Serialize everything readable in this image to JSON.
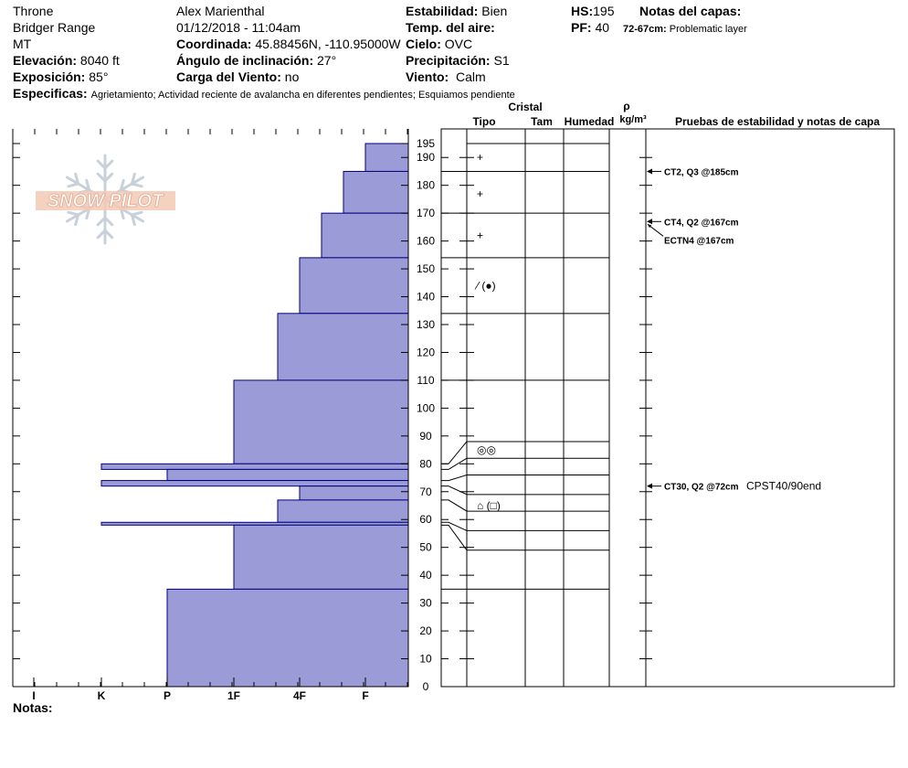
{
  "header": {
    "location": "Throne",
    "range": "Bridger Range",
    "state": "MT",
    "elevation": {
      "label": "Elevación:",
      "value": "8040 ft"
    },
    "aspect": {
      "label": "Exposición:",
      "value": "85°"
    },
    "observer": "Alex Marienthal",
    "datetime": "01/12/2018 - 11:04am",
    "coordinates": {
      "label": "Coordinada:",
      "value": "45.88456N, -110.95000W"
    },
    "slope": {
      "label": "Ángulo de inclinación:",
      "value": "27°"
    },
    "wind_load": {
      "label": "Carga del Viento:",
      "value": "no"
    },
    "stability": {
      "label": "Estabilidad:",
      "value": "Bien"
    },
    "air_temp": {
      "label": "Temp. del aire:",
      "value": ""
    },
    "sky": {
      "label": "Cielo:",
      "value": "OVC"
    },
    "precip": {
      "label": "Precipitación:",
      "value": "S1"
    },
    "wind": {
      "label": "Viento:",
      "value": "Calm"
    },
    "hs": {
      "label": "HS:",
      "value": "195"
    },
    "pf": {
      "label": "PF:",
      "value": "40"
    },
    "layer_notes": {
      "title": "Notas del capas:",
      "items": [
        {
          "range": "72-67cm:",
          "text": "Problematic layer"
        }
      ]
    },
    "specifics": {
      "label": "Especificas:",
      "value": "Agrietamiento;  Actividad reciente de avalancha en diferentes pendientes;  Esquiamos pendiente"
    }
  },
  "logo": {
    "text": "SNOW PILOT"
  },
  "notes_label": "Notas:",
  "columns": {
    "crystal": "Cristal",
    "type": "Tipo",
    "size": "Tam",
    "moisture": "Humedad",
    "density_symbol": "ρ",
    "density_unit": "kg/m³",
    "tests": "Pruebas de estabilidad y notas de capa"
  },
  "colors": {
    "profile_fill": "#9b9bd8",
    "profile_line": "#00007a"
  },
  "chart_data": {
    "type": "bar",
    "orientation": "horizontal",
    "title": "",
    "ylabel": "",
    "xlabel": "",
    "y_axis_unit": "cm",
    "ylim": [
      0,
      195
    ],
    "yticks": [
      0,
      10,
      20,
      30,
      40,
      50,
      60,
      70,
      80,
      90,
      100,
      110,
      120,
      130,
      140,
      150,
      160,
      170,
      180,
      190,
      195
    ],
    "hardness_scale": [
      "I",
      "K",
      "P",
      "1F",
      "4F",
      "F"
    ],
    "hardness_scale_order": [
      "F",
      "4F",
      "1F",
      "P",
      "K",
      "I"
    ],
    "layers": [
      {
        "top": 195,
        "bottom": 185,
        "hardness": "F"
      },
      {
        "top": 185,
        "bottom": 170,
        "hardness": "F+"
      },
      {
        "top": 170,
        "bottom": 154,
        "hardness": "4F-"
      },
      {
        "top": 154,
        "bottom": 134,
        "hardness": "4F"
      },
      {
        "top": 134,
        "bottom": 110,
        "hardness": "4F+"
      },
      {
        "top": 110,
        "bottom": 80,
        "hardness": "1F"
      },
      {
        "top": 80,
        "bottom": 78,
        "hardness": "K"
      },
      {
        "top": 78,
        "bottom": 74,
        "hardness": "P"
      },
      {
        "top": 74,
        "bottom": 72,
        "hardness": "K"
      },
      {
        "top": 72,
        "bottom": 67,
        "hardness": "4F"
      },
      {
        "top": 67,
        "bottom": 59,
        "hardness": "4F+"
      },
      {
        "top": 59,
        "bottom": 58,
        "hardness": "K"
      },
      {
        "top": 58,
        "bottom": 35,
        "hardness": "1F"
      },
      {
        "top": 35,
        "bottom": 0,
        "hardness": "P"
      }
    ],
    "grain_markers": [
      {
        "height": 190,
        "symbol": "+"
      },
      {
        "height": 177,
        "symbol": "+"
      },
      {
        "height": 162,
        "symbol": "+"
      },
      {
        "height": 144,
        "symbol": "⁄ (●)"
      },
      {
        "height": 85,
        "symbol": "◎◎"
      },
      {
        "height": 65,
        "symbol": "⌂ (□)"
      }
    ],
    "layer_boundaries": [
      195,
      185,
      170,
      154,
      134,
      110,
      88,
      82,
      76,
      69,
      63,
      56,
      49,
      35,
      0
    ],
    "tests": [
      {
        "height": 185,
        "text": "CT2, Q3 @185cm",
        "note": ""
      },
      {
        "height": 167,
        "text": "CT4, Q2 @167cm",
        "note": ""
      },
      {
        "height": 167,
        "text": "ECTN4 @167cm",
        "note": ""
      },
      {
        "height": 72,
        "text": "CT30, Q2 @72cm",
        "note": "CPST40/90end"
      }
    ]
  }
}
